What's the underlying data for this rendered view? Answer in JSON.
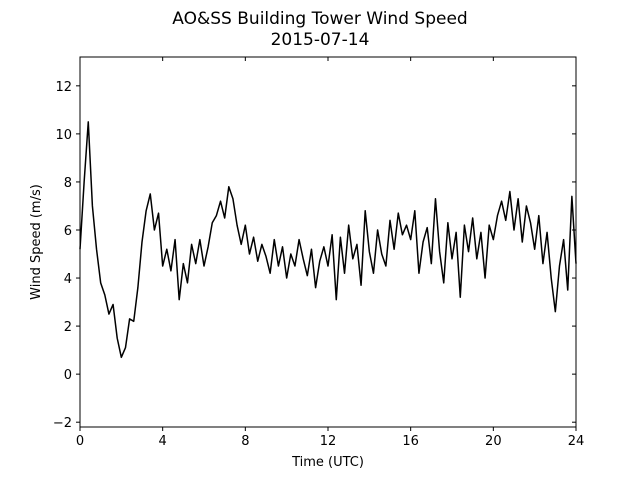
{
  "chart_data": {
    "type": "line",
    "title": "AO&SS Building Tower Wind Speed",
    "subtitle": "2015-07-14",
    "xlabel": "Time (UTC)",
    "ylabel": "Wind Speed (m/s)",
    "color": "#000000",
    "xlim": [
      0,
      24
    ],
    "ylim": [
      -2.2,
      13.2
    ],
    "xticks": [
      0,
      4,
      8,
      12,
      16,
      20,
      24
    ],
    "yticks": [
      {
        "value": -2,
        "label": "−2"
      },
      0,
      2,
      4,
      6,
      8,
      10,
      12
    ],
    "x": [
      0.0,
      0.2,
      0.4,
      0.6,
      0.8,
      1.0,
      1.2,
      1.4,
      1.6,
      1.8,
      2.0,
      2.2,
      2.4,
      2.6,
      2.8,
      3.0,
      3.2,
      3.4,
      3.6,
      3.8,
      4.0,
      4.2,
      4.4,
      4.6,
      4.8,
      5.0,
      5.2,
      5.4,
      5.6,
      5.8,
      6.0,
      6.2,
      6.4,
      6.6,
      6.8,
      7.0,
      7.2,
      7.4,
      7.6,
      7.8,
      8.0,
      8.2,
      8.4,
      8.6,
      8.8,
      9.0,
      9.2,
      9.4,
      9.6,
      9.8,
      10.0,
      10.2,
      10.4,
      10.6,
      10.8,
      11.0,
      11.2,
      11.4,
      11.6,
      11.8,
      12.0,
      12.2,
      12.4,
      12.6,
      12.8,
      13.0,
      13.2,
      13.4,
      13.6,
      13.8,
      14.0,
      14.2,
      14.4,
      14.6,
      14.8,
      15.0,
      15.2,
      15.4,
      15.6,
      15.8,
      16.0,
      16.2,
      16.4,
      16.6,
      16.8,
      17.0,
      17.2,
      17.4,
      17.6,
      17.8,
      18.0,
      18.2,
      18.4,
      18.6,
      18.8,
      19.0,
      19.2,
      19.4,
      19.6,
      19.8,
      20.0,
      20.2,
      20.4,
      20.6,
      20.8,
      21.0,
      21.2,
      21.4,
      21.6,
      21.8,
      22.0,
      22.2,
      22.4,
      22.6,
      22.8,
      23.0,
      23.2,
      23.4,
      23.6,
      23.8,
      24.0
    ],
    "values": [
      5.2,
      8.0,
      10.5,
      7.0,
      5.2,
      3.8,
      3.3,
      2.5,
      2.9,
      1.5,
      0.7,
      1.1,
      2.3,
      2.2,
      3.6,
      5.5,
      6.8,
      7.5,
      6.0,
      6.7,
      4.5,
      5.2,
      4.3,
      5.6,
      3.1,
      4.6,
      3.8,
      5.4,
      4.6,
      5.6,
      4.5,
      5.3,
      6.3,
      6.6,
      7.2,
      6.5,
      7.8,
      7.3,
      6.2,
      5.4,
      6.2,
      5.0,
      5.7,
      4.7,
      5.4,
      4.9,
      4.2,
      5.6,
      4.5,
      5.3,
      4.0,
      5.0,
      4.5,
      5.6,
      4.8,
      4.1,
      5.2,
      3.6,
      4.7,
      5.3,
      4.5,
      5.8,
      3.1,
      5.7,
      4.2,
      6.2,
      4.8,
      5.4,
      3.7,
      6.8,
      5.1,
      4.2,
      6.0,
      5.0,
      4.5,
      6.4,
      5.2,
      6.7,
      5.8,
      6.2,
      5.6,
      6.8,
      4.2,
      5.5,
      6.1,
      4.6,
      7.3,
      5.1,
      3.8,
      6.3,
      4.8,
      5.9,
      3.2,
      6.2,
      5.1,
      6.5,
      4.8,
      5.9,
      4.0,
      6.2,
      5.6,
      6.6,
      7.2,
      6.4,
      7.6,
      6.0,
      7.3,
      5.5,
      7.0,
      6.3,
      5.2,
      6.6,
      4.6,
      5.9,
      4.0,
      2.6,
      4.5,
      5.6,
      3.5,
      7.4,
      4.6
    ]
  }
}
